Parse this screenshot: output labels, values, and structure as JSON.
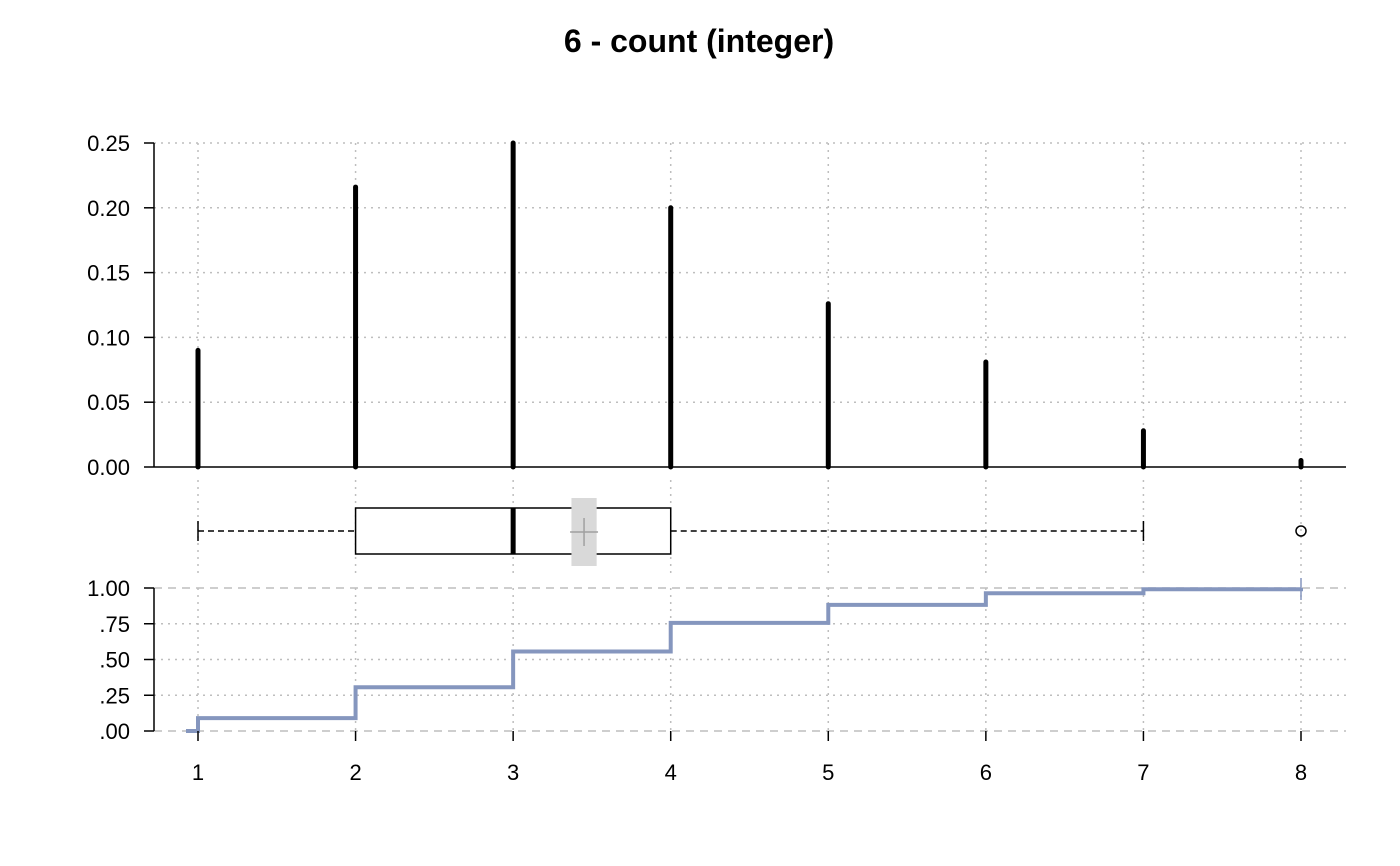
{
  "chart_data": [
    {
      "type": "bar",
      "title": "6 - count (integer)",
      "x": [
        1,
        2,
        3,
        4,
        5,
        6,
        7,
        8
      ],
      "values": [
        0.09,
        0.216,
        0.25,
        0.2,
        0.126,
        0.081,
        0.028,
        0.005
      ],
      "ylim": [
        0,
        0.25
      ],
      "yticks": [
        "0.00",
        "0.05",
        "0.10",
        "0.15",
        "0.20",
        "0.25"
      ],
      "ytick_values": [
        0,
        0.05,
        0.1,
        0.15,
        0.2,
        0.25
      ],
      "grid": true,
      "bar_color": "#000000"
    },
    {
      "type": "box",
      "whisker_low": 1,
      "q1": 2,
      "median": 3,
      "q3": 4,
      "whisker_high": 7,
      "outliers": [
        8
      ],
      "mean": 3.45,
      "mean_ci": [
        3.37,
        3.53
      ],
      "mean_color": "#d9d9d9"
    },
    {
      "type": "line",
      "step": true,
      "x": [
        1,
        2,
        3,
        4,
        5,
        6,
        7,
        8
      ],
      "values": [
        0.09,
        0.306,
        0.556,
        0.756,
        0.882,
        0.963,
        0.991,
        1.0
      ],
      "ylim": [
        0,
        1
      ],
      "yticks": [
        ".00",
        ".25",
        ".50",
        ".75",
        "1.00"
      ],
      "ytick_values": [
        0,
        0.25,
        0.5,
        0.75,
        1.0
      ],
      "xlim": [
        1,
        8
      ],
      "xticks": [
        "1",
        "2",
        "3",
        "4",
        "5",
        "6",
        "7",
        "8"
      ],
      "xtick_values": [
        1,
        2,
        3,
        4,
        5,
        6,
        7,
        8
      ],
      "line_color": "#8596be",
      "grid": true
    }
  ]
}
